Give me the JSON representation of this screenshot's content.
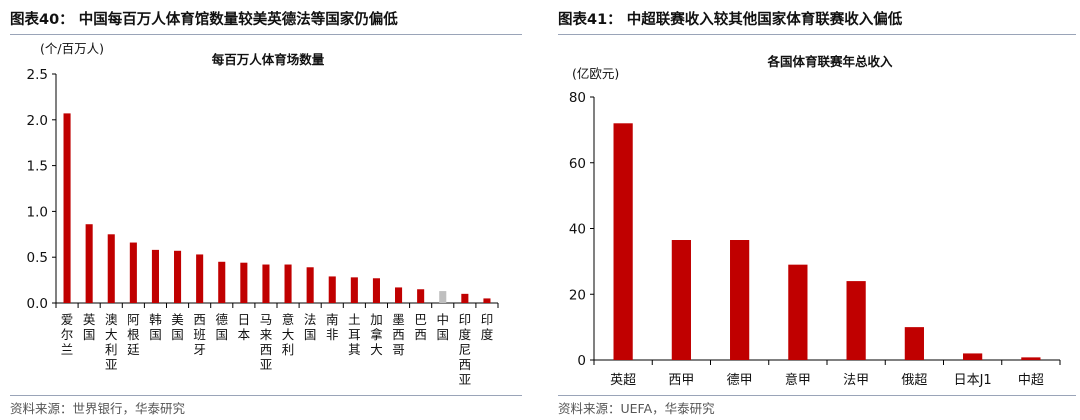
{
  "left": {
    "figure_title": "图表40：  中国每百万人体育馆数量较美英德法等国家仍偏低",
    "source": "资料来源：世界银行，华泰研究"
  },
  "right": {
    "figure_title": "图表41：  中超联赛收入较其他国家体育联赛收入偏低",
    "source": "资料来源：UEFA，华泰研究"
  },
  "chart_data": [
    {
      "type": "bar",
      "title": "每百万人体育场数量",
      "ylabel": "(个/百万人)",
      "ylim": [
        0,
        2.5
      ],
      "yticks": [
        "0.0",
        "0.5",
        "1.0",
        "1.5",
        "2.0",
        "2.5"
      ],
      "grid": false,
      "categories": [
        "爱尔兰",
        "英国",
        "澳大利亚",
        "阿根廷",
        "韩国",
        "美国",
        "西班牙",
        "德国",
        "日本",
        "马来西亚",
        "意大利",
        "法国",
        "南非",
        "土耳其",
        "加拿大",
        "墨西哥",
        "巴西",
        "中国",
        "印度尼西亚",
        "印度"
      ],
      "values": [
        2.07,
        0.86,
        0.75,
        0.66,
        0.58,
        0.57,
        0.53,
        0.45,
        0.44,
        0.42,
        0.42,
        0.39,
        0.29,
        0.28,
        0.27,
        0.17,
        0.15,
        0.13,
        0.1,
        0.05
      ],
      "bar_color": "#c00000",
      "highlight_index": 17,
      "highlight_color": "#bfbfbf"
    },
    {
      "type": "bar",
      "title": "各国体育联赛年总收入",
      "ylabel": "(亿欧元)",
      "ylim": [
        0,
        80
      ],
      "yticks": [
        "0",
        "20",
        "40",
        "60",
        "80"
      ],
      "grid": false,
      "categories": [
        "英超",
        "西甲",
        "德甲",
        "意甲",
        "法甲",
        "俄超",
        "日本J1",
        "中超"
      ],
      "values": [
        72,
        36.5,
        36.5,
        29,
        24,
        10,
        2,
        0.8
      ],
      "bar_color": "#c00000"
    }
  ]
}
